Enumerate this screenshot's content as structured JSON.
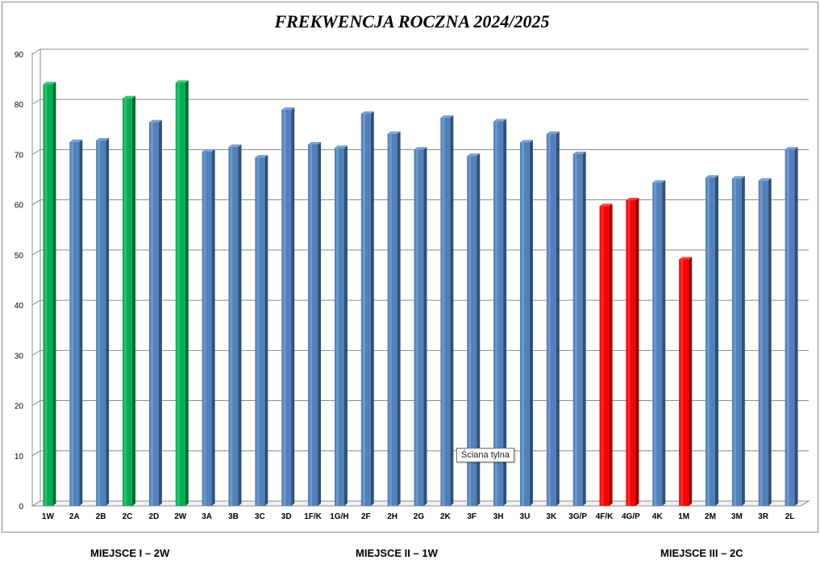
{
  "chart_data": {
    "type": "bar",
    "title": "FREKWENCJA ROCZNA 2024/2025",
    "categories": [
      "1W",
      "2A",
      "2B",
      "2C",
      "2D",
      "2W",
      "3A",
      "3B",
      "3C",
      "3D",
      "1F/K",
      "1G/H",
      "2F",
      "2H",
      "2G",
      "2K",
      "3F",
      "3H",
      "3U",
      "3K",
      "3G/P",
      "4F/K",
      "4G/P",
      "4K",
      "1M",
      "2M",
      "3M",
      "3R",
      "2L"
    ],
    "values": [
      84,
      72.5,
      72.8,
      81.2,
      76.4,
      84.3,
      70.6,
      71.5,
      69.4,
      78.9,
      72.0,
      71.3,
      78.1,
      74.1,
      71.0,
      77.3,
      69.7,
      76.6,
      72.4,
      74.1,
      70.1,
      59.7,
      60.9,
      64.4,
      49.1,
      65.4,
      65.2,
      64.8,
      71.0
    ],
    "colors": [
      "#00b050",
      "#4f81bd",
      "#4f81bd",
      "#00b050",
      "#4f81bd",
      "#00b050",
      "#4f81bd",
      "#4f81bd",
      "#4f81bd",
      "#4f81bd",
      "#4f81bd",
      "#4f81bd",
      "#4f81bd",
      "#4f81bd",
      "#4f81bd",
      "#4f81bd",
      "#4f81bd",
      "#4f81bd",
      "#4f81bd",
      "#4f81bd",
      "#4f81bd",
      "#ff0000",
      "#ff0000",
      "#4f81bd",
      "#ff0000",
      "#4f81bd",
      "#4f81bd",
      "#4f81bd",
      "#4f81bd"
    ],
    "ylim": [
      0,
      90
    ],
    "yticks": [
      0,
      10,
      20,
      30,
      40,
      50,
      60,
      70,
      80,
      90
    ],
    "grid": true,
    "xlabel": "",
    "ylabel": ""
  },
  "tooltip": "Ściana tylna",
  "footer": {
    "first": "MIEJSCE I – 2W",
    "second": "MIEJSCE II – 1W",
    "third": "MIEJSCE III – 2C"
  }
}
